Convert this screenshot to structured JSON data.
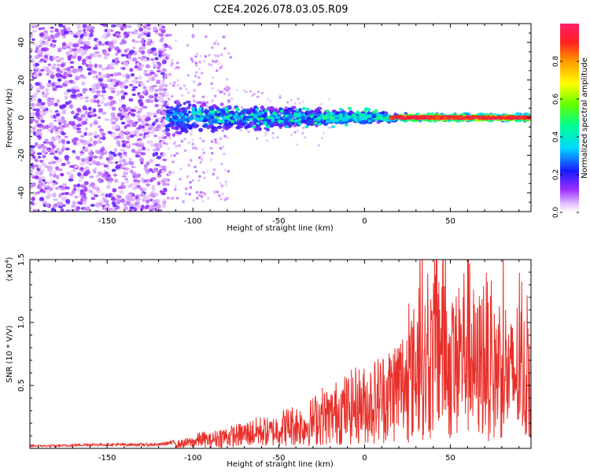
{
  "title": "C2E4.2026.078.03.05.R09",
  "chart_data": [
    {
      "type": "heatmap",
      "name": "spectrogram",
      "xlabel": "Height of straight line (km)",
      "ylabel": "Frequency (Hz)",
      "xlim": [
        -195,
        97
      ],
      "ylim": [
        -50,
        50
      ],
      "xticks": [
        -150,
        -100,
        -50,
        0,
        50
      ],
      "yticks": [
        -40,
        -20,
        0,
        20,
        40
      ],
      "xtick_labels": [
        "-150",
        "-100",
        "-50",
        "0",
        "50"
      ],
      "ytick_labels": [
        "-40",
        "-20",
        "0",
        "20",
        "40"
      ],
      "colorbar": {
        "label": "Normalized spectral amplitude",
        "range": [
          0.0,
          1.0
        ],
        "ticks": [
          0.0,
          0.2,
          0.4,
          0.6,
          0.8
        ],
        "tick_labels": [
          "0.0",
          "0.2",
          "0.4",
          "0.6",
          "0.8"
        ],
        "colormap": "rainbow (white-violet-blue-cyan-green-yellow-orange-red)"
      },
      "regions": [
        {
          "x_range": [
            -195,
            -115
          ],
          "freq_range": [
            -50,
            50
          ],
          "amplitude": [
            0.0,
            0.25
          ],
          "description": "broadband noise"
        },
        {
          "x_range": [
            -115,
            -25
          ],
          "freq_center": 0,
          "freq_halfwidth": [
            10,
            4
          ],
          "amplitude": [
            0.2,
            0.45
          ]
        },
        {
          "x_range": [
            -25,
            20
          ],
          "freq_center": 0,
          "freq_halfwidth": [
            4,
            2.5
          ],
          "amplitude": [
            0.3,
            0.7
          ]
        },
        {
          "x_range": [
            20,
            97
          ],
          "freq_center": 0,
          "freq_halfwidth": 2,
          "amplitude": [
            0.7,
            1.0
          ]
        }
      ]
    },
    {
      "type": "line",
      "name": "snr",
      "xlabel": "Height of straight line (km)",
      "ylabel": "SNR (10 * V/V)",
      "y_multiplier": "(x10",
      "y_multiplier_exp": "4",
      "y_multiplier_close": ")",
      "xlim": [
        -195,
        97
      ],
      "ylim": [
        0,
        1.5
      ],
      "xticks": [
        -150,
        -100,
        -50,
        0,
        50
      ],
      "yticks": [
        0.5,
        1.0,
        1.5
      ],
      "xtick_labels": [
        "-150",
        "-100",
        "-50",
        "0",
        "50"
      ],
      "ytick_labels": [
        "0.5",
        "1.0",
        "1.5"
      ],
      "series": [
        {
          "name": "SNR",
          "color": "#e8302a",
          "x": [
            -195,
            -180,
            -160,
            -140,
            -120,
            -110,
            -100,
            -95,
            -90,
            -85,
            -80,
            -75,
            -70,
            -65,
            -60,
            -55,
            -50,
            -45,
            -40,
            -35,
            -30,
            -25,
            -20,
            -15,
            -10,
            -5,
            0,
            5,
            10,
            15,
            20,
            25,
            30,
            33,
            36,
            40,
            45,
            50,
            55,
            60,
            65,
            70,
            75,
            80,
            85,
            90,
            95,
            97
          ],
          "y": [
            0.02,
            0.02,
            0.03,
            0.03,
            0.03,
            0.05,
            0.08,
            0.12,
            0.1,
            0.14,
            0.15,
            0.16,
            0.18,
            0.2,
            0.22,
            0.2,
            0.25,
            0.28,
            0.3,
            0.28,
            0.35,
            0.42,
            0.4,
            0.48,
            0.5,
            0.55,
            0.55,
            0.6,
            0.65,
            0.7,
            0.8,
            0.85,
            1.0,
            1.5,
            0.9,
            1.2,
            1.5,
            0.95,
            1.1,
            1.4,
            0.95,
            1.25,
            0.9,
            1.15,
            0.85,
            1.05,
            0.8,
            1.1
          ],
          "noise": "high-frequency jagged fluctuation around envelope"
        }
      ]
    }
  ]
}
